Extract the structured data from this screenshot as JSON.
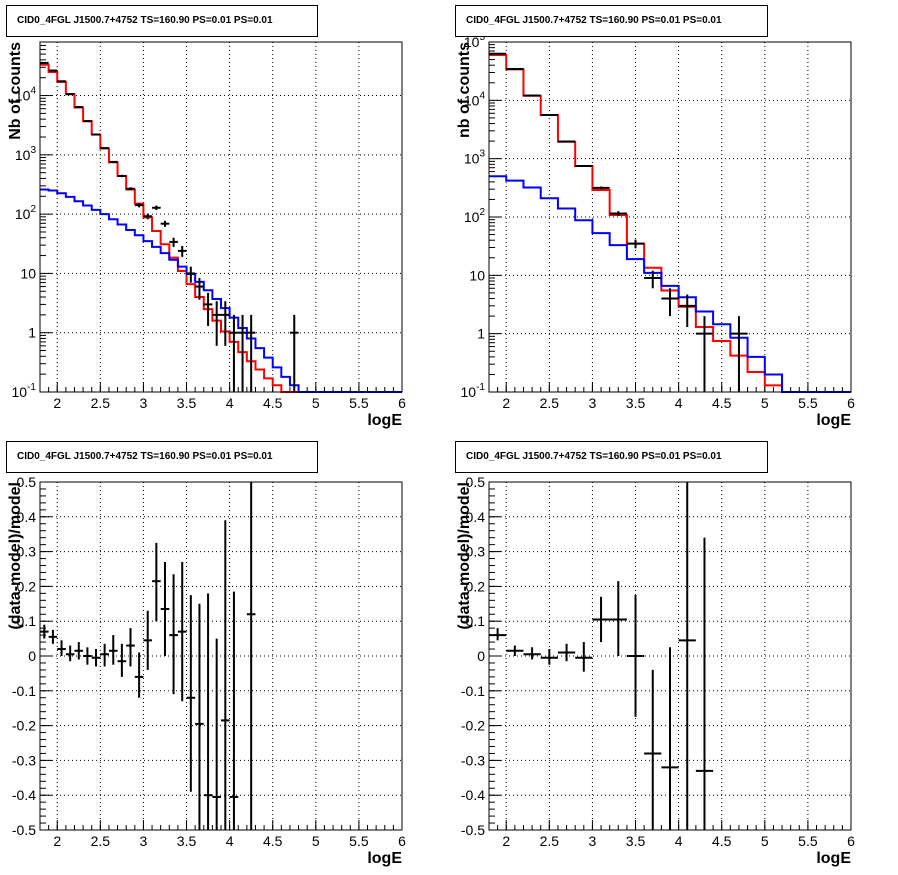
{
  "chart_data": [
    {
      "type": "histogram",
      "title": "CID0_4FGL J1500.7+4752 TS=160.90 PS=0.01 PS=0.01",
      "xlabel": "logE",
      "ylabel": "Nb of counts",
      "yscale": "log",
      "xlim": [
        1.8,
        6.0
      ],
      "ylim": [
        0.1,
        80000
      ],
      "grid": true,
      "x_ticks": [
        "2",
        "2.5",
        "3",
        "3.5",
        "4",
        "4.5",
        "5",
        "5.5",
        "6"
      ],
      "y_ticks": [
        "10^-1",
        "1",
        "10",
        "10^2",
        "10^3",
        "10^4"
      ],
      "bin_width": 0.1,
      "bin_edges_start": 1.8,
      "series": [
        {
          "color": "#ff0000",
          "kind": "step",
          "values": [
            33000,
            25000,
            17000,
            10500,
            6300,
            3700,
            2200,
            1280,
            750,
            440,
            260,
            150,
            88,
            52,
            31,
            18.5,
            11,
            6.6,
            4.0,
            2.5,
            1.6,
            1.05,
            0.7,
            0.47,
            0.33,
            0.24,
            0.17,
            0.13,
            0.1,
            0.1,
            0.1,
            0.1,
            0.1,
            0.1,
            0.1,
            0.1,
            0.1,
            0.1,
            0.1,
            0.1,
            0.1,
            0.1
          ]
        },
        {
          "color": "#0000ff",
          "kind": "step",
          "values": [
            260,
            250,
            225,
            195,
            165,
            140,
            118,
            100,
            82,
            67,
            54,
            44,
            35,
            28,
            22,
            17,
            13,
            9.8,
            7.2,
            5.2,
            3.7,
            2.6,
            1.8,
            1.2,
            0.8,
            0.55,
            0.38,
            0.26,
            0.18,
            0.13,
            0.1,
            0.1,
            0.1,
            0.1,
            0.1,
            0.1,
            0.1,
            0.1,
            0.1,
            0.1,
            0.1,
            0.1
          ]
        },
        {
          "color": "#000000",
          "kind": "errorbar",
          "half_width": 0.05,
          "points": [
            {
              "x": 1.85,
              "y": 35500,
              "lo": 35300,
              "hi": 35700
            },
            {
              "x": 1.95,
              "y": 26400,
              "lo": 26200,
              "hi": 26600
            },
            {
              "x": 2.05,
              "y": 17400,
              "lo": 17250,
              "hi": 17550
            },
            {
              "x": 2.15,
              "y": 10600,
              "lo": 10500,
              "hi": 10700
            },
            {
              "x": 2.25,
              "y": 6400,
              "lo": 6320,
              "hi": 6480
            },
            {
              "x": 2.35,
              "y": 3700,
              "lo": 3640,
              "hi": 3760
            },
            {
              "x": 2.45,
              "y": 2200,
              "lo": 2150,
              "hi": 2250
            },
            {
              "x": 2.55,
              "y": 1300,
              "lo": 1265,
              "hi": 1335
            },
            {
              "x": 2.65,
              "y": 760,
              "lo": 733,
              "hi": 787
            },
            {
              "x": 2.75,
              "y": 440,
              "lo": 419,
              "hi": 461
            },
            {
              "x": 2.85,
              "y": 268,
              "lo": 252,
              "hi": 284
            },
            {
              "x": 2.95,
              "y": 142,
              "lo": 130,
              "hi": 154
            },
            {
              "x": 3.05,
              "y": 92,
              "lo": 82,
              "hi": 102
            },
            {
              "x": 3.15,
              "y": 128,
              "lo": 117,
              "hi": 139
            },
            {
              "x": 3.25,
              "y": 69,
              "lo": 61,
              "hi": 77
            },
            {
              "x": 3.35,
              "y": 34,
              "lo": 28,
              "hi": 40
            },
            {
              "x": 3.45,
              "y": 24,
              "lo": 19,
              "hi": 29
            },
            {
              "x": 3.55,
              "y": 10,
              "lo": 7,
              "hi": 13
            },
            {
              "x": 3.65,
              "y": 6,
              "lo": 3.6,
              "hi": 8.4
            },
            {
              "x": 3.75,
              "y": 3,
              "lo": 1.3,
              "hi": 4.7
            },
            {
              "x": 3.85,
              "y": 2,
              "lo": 0.6,
              "hi": 3.4
            },
            {
              "x": 3.95,
              "y": 2,
              "lo": 0.6,
              "hi": 3.4
            },
            {
              "x": 4.05,
              "y": 1,
              "lo": 0.1,
              "hi": 2.0
            },
            {
              "x": 4.15,
              "y": 1,
              "lo": 0.1,
              "hi": 2.0
            },
            {
              "x": 4.25,
              "y": 1,
              "lo": 0.1,
              "hi": 2.0
            },
            {
              "x": 4.75,
              "y": 1,
              "lo": 0.1,
              "hi": 2.0
            }
          ]
        }
      ]
    },
    {
      "type": "histogram",
      "title": "CID0_4FGL J1500.7+4752 TS=160.90 PS=0.01 PS=0.01",
      "xlabel": "logE",
      "ylabel": "nb of counts",
      "yscale": "log",
      "xlim": [
        1.8,
        6.0
      ],
      "ylim": [
        0.1,
        100000
      ],
      "grid": true,
      "x_ticks": [
        "2",
        "2.5",
        "3",
        "3.5",
        "4",
        "4.5",
        "5",
        "5.5",
        "6"
      ],
      "y_ticks": [
        "10^-1",
        "1",
        "10",
        "10^2",
        "10^3",
        "10^4",
        "10^5"
      ],
      "bin_width": 0.2,
      "bin_edges_start": 1.8,
      "series": [
        {
          "color": "#ff0000",
          "kind": "step",
          "values": [
            60000,
            34000,
            12000,
            5600,
            1950,
            750,
            290,
            108,
            35,
            13.5,
            5.5,
            2.9,
            1.3,
            0.75,
            0.42,
            0.22,
            0.13,
            0.1,
            0.1,
            0.1,
            0.1
          ]
        },
        {
          "color": "#0000ff",
          "kind": "step",
          "values": [
            500,
            420,
            320,
            210,
            140,
            88,
            53,
            33,
            19,
            11,
            6.6,
            4.2,
            2.4,
            1.45,
            0.85,
            0.4,
            0.2,
            0.1,
            0.1,
            0.1,
            0.1
          ]
        },
        {
          "color": "#000000",
          "kind": "errorbar",
          "half_width": 0.1,
          "points": [
            {
              "x": 1.9,
              "y": 63000,
              "lo": 62750,
              "hi": 63250
            },
            {
              "x": 2.1,
              "y": 34500,
              "lo": 34300,
              "hi": 34700
            },
            {
              "x": 2.3,
              "y": 12100,
              "lo": 11990,
              "hi": 12210
            },
            {
              "x": 2.5,
              "y": 5600,
              "lo": 5525,
              "hi": 5675
            },
            {
              "x": 2.7,
              "y": 1970,
              "lo": 1925,
              "hi": 2015
            },
            {
              "x": 2.9,
              "y": 750,
              "lo": 723,
              "hi": 777
            },
            {
              "x": 3.1,
              "y": 315,
              "lo": 297,
              "hi": 333
            },
            {
              "x": 3.3,
              "y": 115,
              "lo": 104,
              "hi": 126
            },
            {
              "x": 3.5,
              "y": 35,
              "lo": 29,
              "hi": 41
            },
            {
              "x": 3.7,
              "y": 9,
              "lo": 6,
              "hi": 12
            },
            {
              "x": 3.9,
              "y": 4,
              "lo": 2,
              "hi": 6
            },
            {
              "x": 4.1,
              "y": 3,
              "lo": 1.3,
              "hi": 4.7
            },
            {
              "x": 4.3,
              "y": 1,
              "lo": 0.1,
              "hi": 2.0
            },
            {
              "x": 4.7,
              "y": 1,
              "lo": 0.1,
              "hi": 2.0
            }
          ]
        }
      ]
    },
    {
      "type": "scatter",
      "title": "CID0_4FGL J1500.7+4752 TS=160.90 PS=0.01 PS=0.01",
      "xlabel": "logE",
      "ylabel": "(data-model)/model",
      "yscale": "linear",
      "xlim": [
        1.8,
        6.0
      ],
      "ylim": [
        -0.5,
        0.5
      ],
      "grid": true,
      "x_ticks": [
        "2",
        "2.5",
        "3",
        "3.5",
        "4",
        "4.5",
        "5",
        "5.5",
        "6"
      ],
      "y_ticks": [
        "-0.5",
        "-0.4",
        "-0.3",
        "-0.2",
        "-0.1",
        "0",
        "0.1",
        "0.2",
        "0.3",
        "0.4",
        "0.5"
      ],
      "series": [
        {
          "color": "#000000",
          "kind": "errorbar",
          "half_width": 0.05,
          "points": [
            {
              "x": 1.85,
              "y": 0.07,
              "lo": 0.05,
              "hi": 0.09
            },
            {
              "x": 1.95,
              "y": 0.055,
              "lo": 0.035,
              "hi": 0.075
            },
            {
              "x": 2.05,
              "y": 0.02,
              "lo": 0.0,
              "hi": 0.045
            },
            {
              "x": 2.15,
              "y": 0.005,
              "lo": -0.015,
              "hi": 0.03
            },
            {
              "x": 2.25,
              "y": 0.015,
              "lo": -0.01,
              "hi": 0.04
            },
            {
              "x": 2.35,
              "y": 0.0,
              "lo": -0.025,
              "hi": 0.025
            },
            {
              "x": 2.45,
              "y": -0.005,
              "lo": -0.03,
              "hi": 0.02
            },
            {
              "x": 2.55,
              "y": 0.005,
              "lo": -0.03,
              "hi": 0.035
            },
            {
              "x": 2.65,
              "y": 0.015,
              "lo": -0.025,
              "hi": 0.06
            },
            {
              "x": 2.75,
              "y": -0.015,
              "lo": -0.06,
              "hi": 0.035
            },
            {
              "x": 2.85,
              "y": 0.03,
              "lo": -0.03,
              "hi": 0.08
            },
            {
              "x": 2.95,
              "y": -0.06,
              "lo": -0.12,
              "hi": 0.01
            },
            {
              "x": 3.05,
              "y": 0.045,
              "lo": -0.04,
              "hi": 0.13
            },
            {
              "x": 3.15,
              "y": 0.215,
              "lo": 0.1,
              "hi": 0.325
            },
            {
              "x": 3.25,
              "y": 0.135,
              "lo": 0.0,
              "hi": 0.27
            },
            {
              "x": 3.35,
              "y": 0.06,
              "lo": -0.11,
              "hi": 0.235
            },
            {
              "x": 3.45,
              "y": 0.07,
              "lo": -0.13,
              "hi": 0.27
            },
            {
              "x": 3.55,
              "y": -0.12,
              "lo": -0.39,
              "hi": 0.175
            },
            {
              "x": 3.65,
              "y": -0.195,
              "lo": -0.5,
              "hi": 0.15
            },
            {
              "x": 3.75,
              "y": -0.4,
              "lo": -0.5,
              "hi": 0.18
            },
            {
              "x": 3.85,
              "y": -0.405,
              "lo": -0.5,
              "hi": 0.05
            },
            {
              "x": 3.95,
              "y": -0.185,
              "lo": -0.5,
              "hi": 0.39
            },
            {
              "x": 4.05,
              "y": -0.405,
              "lo": -0.5,
              "hi": 0.185
            },
            {
              "x": 4.25,
              "y": 0.12,
              "lo": -0.5,
              "hi": 0.5
            }
          ]
        }
      ]
    },
    {
      "type": "scatter",
      "title": "CID0_4FGL J1500.7+4752 TS=160.90 PS=0.01 PS=0.01",
      "xlabel": "logE",
      "ylabel": "(data-model)/model",
      "yscale": "linear",
      "xlim": [
        1.8,
        6.0
      ],
      "ylim": [
        -0.5,
        0.5
      ],
      "grid": true,
      "x_ticks": [
        "2",
        "2.5",
        "3",
        "3.5",
        "4",
        "4.5",
        "5",
        "5.5",
        "6"
      ],
      "y_ticks": [
        "-0.5",
        "-0.4",
        "-0.3",
        "-0.2",
        "-0.1",
        "0",
        "0.1",
        "0.2",
        "0.3",
        "0.4",
        "0.5"
      ],
      "series": [
        {
          "color": "#000000",
          "kind": "errorbar",
          "half_width": 0.1,
          "points": [
            {
              "x": 1.9,
              "y": 0.06,
              "lo": 0.045,
              "hi": 0.08
            },
            {
              "x": 2.1,
              "y": 0.015,
              "lo": 0.0,
              "hi": 0.03
            },
            {
              "x": 2.3,
              "y": 0.005,
              "lo": -0.01,
              "hi": 0.025
            },
            {
              "x": 2.5,
              "y": -0.005,
              "lo": -0.025,
              "hi": 0.02
            },
            {
              "x": 2.7,
              "y": 0.01,
              "lo": -0.015,
              "hi": 0.035
            },
            {
              "x": 2.9,
              "y": -0.005,
              "lo": -0.045,
              "hi": 0.04
            },
            {
              "x": 3.1,
              "y": 0.105,
              "lo": 0.04,
              "hi": 0.17
            },
            {
              "x": 3.3,
              "y": 0.105,
              "lo": 0.0,
              "hi": 0.215
            },
            {
              "x": 3.5,
              "y": 0.0,
              "lo": -0.175,
              "hi": 0.175
            },
            {
              "x": 3.7,
              "y": -0.28,
              "lo": -0.5,
              "hi": -0.04
            },
            {
              "x": 3.9,
              "y": -0.32,
              "lo": -0.5,
              "hi": 0.025
            },
            {
              "x": 4.1,
              "y": 0.045,
              "lo": -0.5,
              "hi": 0.5
            },
            {
              "x": 4.3,
              "y": -0.33,
              "lo": -0.5,
              "hi": 0.34
            }
          ]
        }
      ]
    }
  ]
}
